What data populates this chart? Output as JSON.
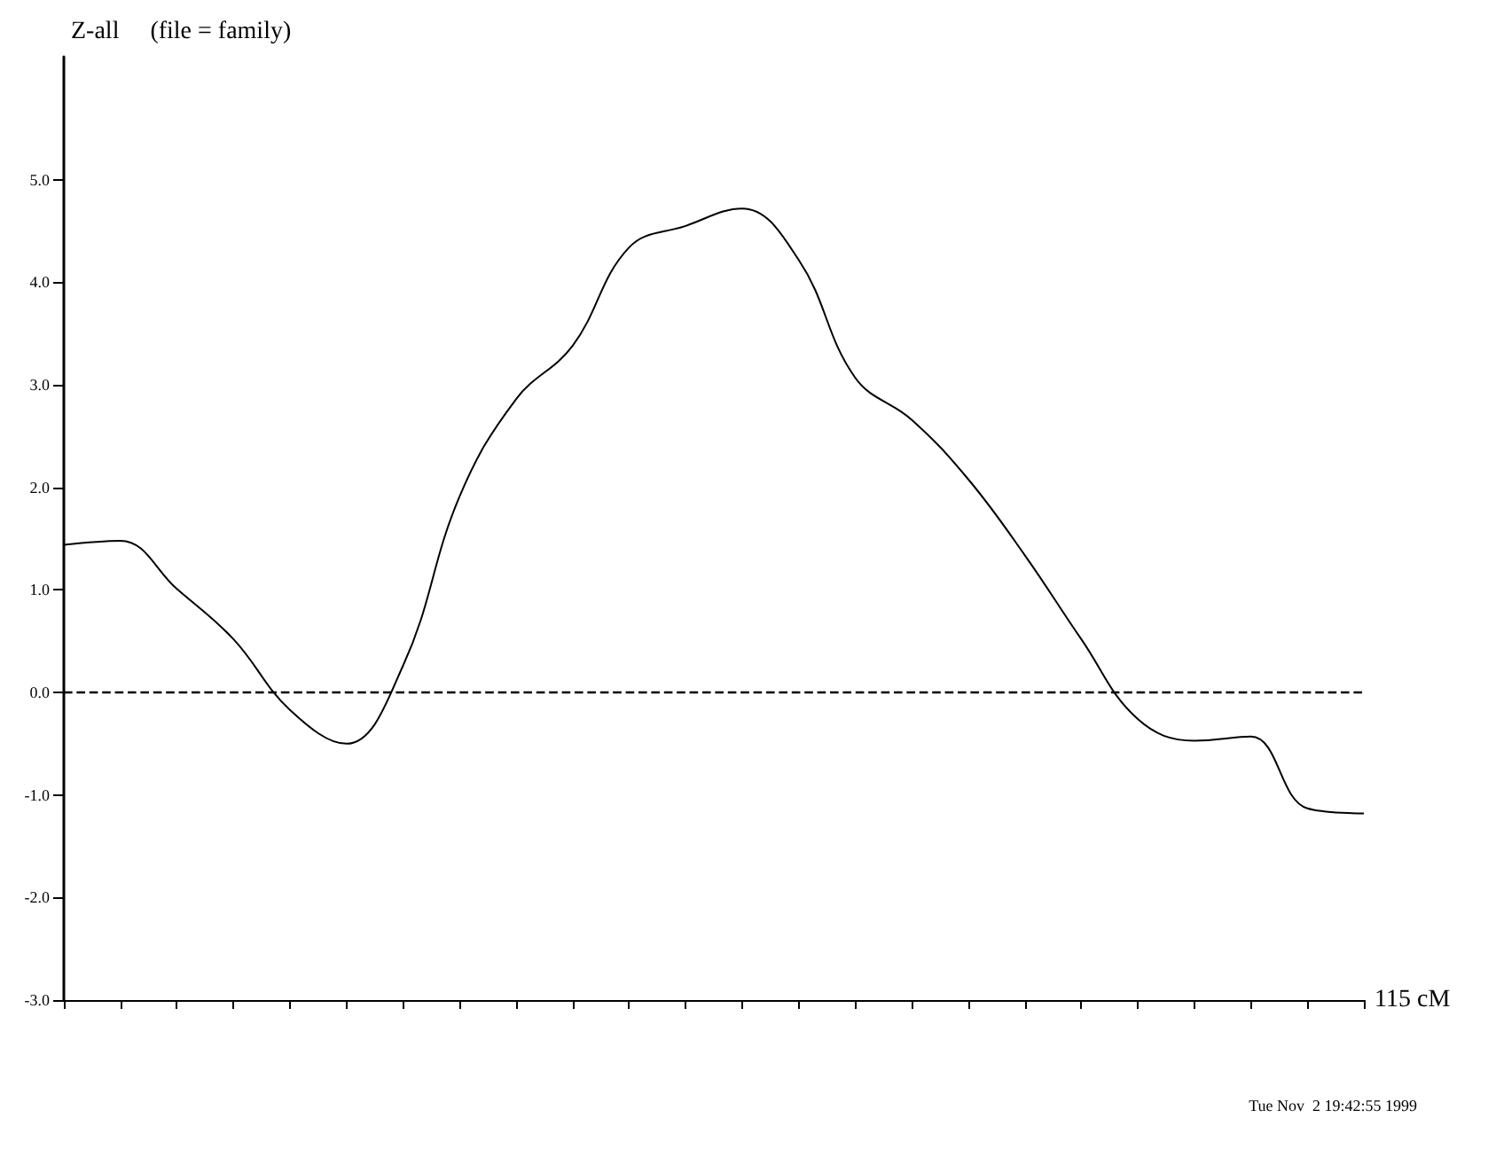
{
  "chart_data": {
    "type": "line",
    "title": "Z-all     (file = family)",
    "xlabel": "115 cM",
    "categories": [
      null,
      null,
      null,
      null,
      null,
      null,
      null,
      null,
      null,
      null,
      null,
      null,
      null,
      null,
      null,
      null,
      null,
      null,
      null,
      null,
      null,
      null,
      null,
      null
    ],
    "series": [
      {
        "color": "#000000",
        "values": [
          1.44,
          1.48,
          1.01,
          0.52,
          -0.17,
          -0.5,
          0.26,
          1.91,
          2.86,
          3.38,
          4.34,
          4.55,
          4.72,
          4.22,
          3.07,
          2.66,
          2.08,
          1.34,
          0.52,
          -0.26,
          -0.47,
          -0.43,
          -1.13,
          -1.18
        ]
      }
    ],
    "ylim": [
      -3,
      6.2
    ],
    "yticks": [
      {
        "value": -3,
        "label": "-3.0"
      },
      {
        "value": -2,
        "label": "-2.0"
      },
      {
        "value": -1,
        "label": "-1.0"
      },
      {
        "value": 0,
        "label": "0.0"
      },
      {
        "value": 1,
        "label": "1.0"
      },
      {
        "value": 2,
        "label": "2.0"
      },
      {
        "value": 3,
        "label": "3.0"
      },
      {
        "value": 4,
        "label": "4.0"
      },
      {
        "value": 5,
        "label": "5.0"
      }
    ],
    "ref_lines": [
      {
        "axis": "y",
        "value": 0,
        "line_style": "dashed",
        "color": "#000000"
      }
    ],
    "annotations": [
      "Tue Nov  2 19:42:55 1999"
    ],
    "grid": false,
    "marker": "none",
    "line_style": "solid"
  }
}
